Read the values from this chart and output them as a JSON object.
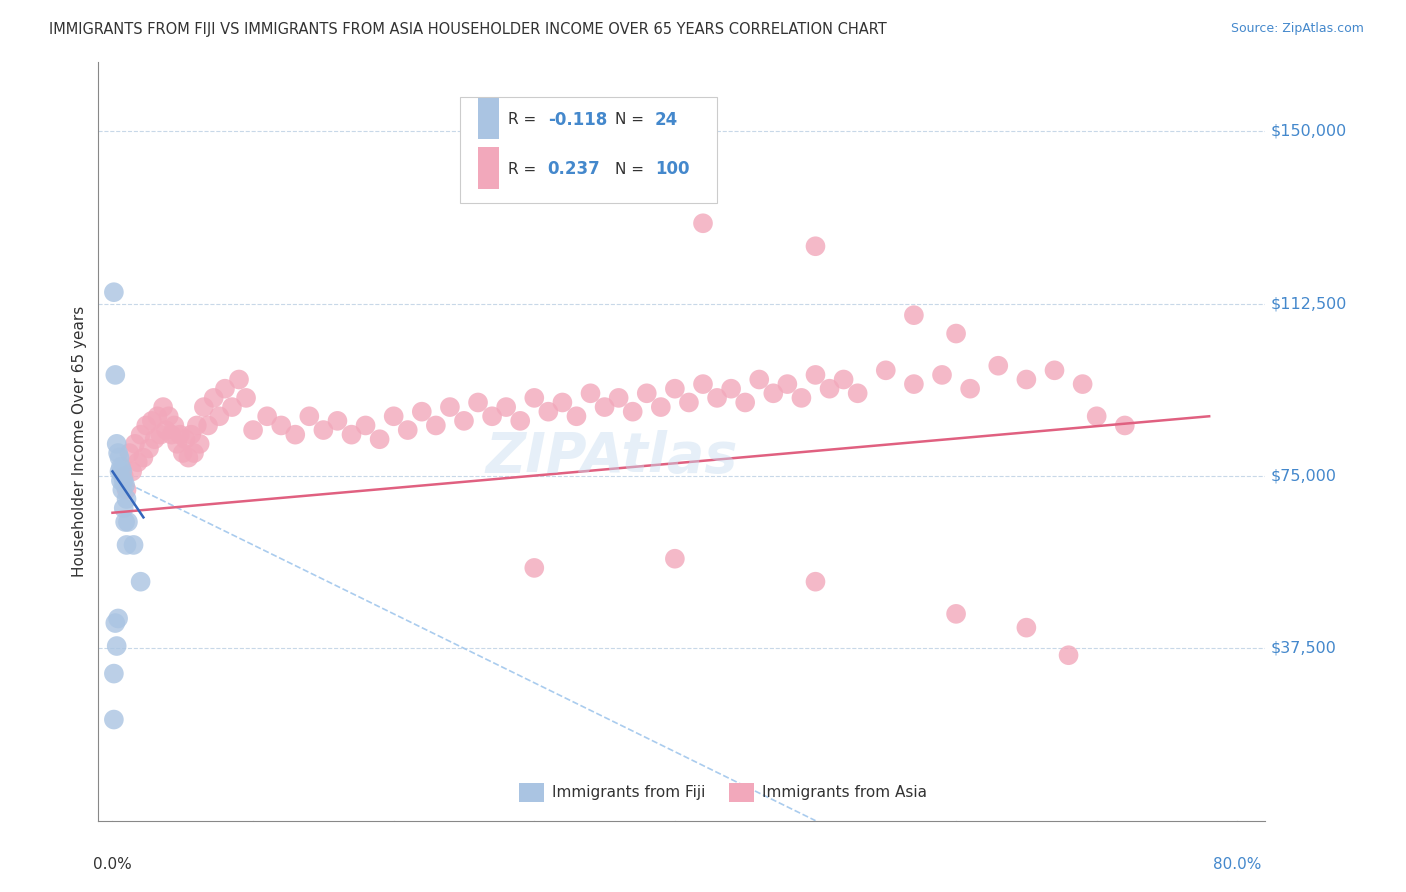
{
  "title": "IMMIGRANTS FROM FIJI VS IMMIGRANTS FROM ASIA HOUSEHOLDER INCOME OVER 65 YEARS CORRELATION CHART",
  "source": "Source: ZipAtlas.com",
  "ylabel": "Householder Income Over 65 years",
  "ytick_labels": [
    "$150,000",
    "$112,500",
    "$75,000",
    "$37,500"
  ],
  "ytick_values": [
    150000,
    112500,
    75000,
    37500
  ],
  "ymax": 165000,
  "ymin": 0,
  "xmax": 0.82,
  "xmin": -0.01,
  "fiji_R": -0.118,
  "fiji_N": 24,
  "asia_R": 0.237,
  "asia_N": 100,
  "fiji_color": "#aac4e2",
  "asia_color": "#f2a8bb",
  "fiji_trend_color": "#3366bb",
  "asia_trend_color": "#e06080",
  "fiji_scatter": [
    [
      0.001,
      115000
    ],
    [
      0.002,
      97000
    ],
    [
      0.003,
      82000
    ],
    [
      0.004,
      80000
    ],
    [
      0.005,
      79000
    ],
    [
      0.005,
      76000
    ],
    [
      0.006,
      77000
    ],
    [
      0.006,
      74000
    ],
    [
      0.007,
      76000
    ],
    [
      0.007,
      72000
    ],
    [
      0.008,
      74000
    ],
    [
      0.008,
      68000
    ],
    [
      0.009,
      73000
    ],
    [
      0.009,
      65000
    ],
    [
      0.01,
      70000
    ],
    [
      0.01,
      60000
    ],
    [
      0.011,
      65000
    ],
    [
      0.015,
      60000
    ],
    [
      0.02,
      52000
    ],
    [
      0.002,
      43000
    ],
    [
      0.003,
      38000
    ],
    [
      0.004,
      44000
    ],
    [
      0.001,
      32000
    ],
    [
      0.001,
      22000
    ]
  ],
  "asia_scatter": [
    [
      0.008,
      75000
    ],
    [
      0.01,
      72000
    ],
    [
      0.012,
      80000
    ],
    [
      0.014,
      76000
    ],
    [
      0.016,
      82000
    ],
    [
      0.018,
      78000
    ],
    [
      0.02,
      84000
    ],
    [
      0.022,
      79000
    ],
    [
      0.024,
      86000
    ],
    [
      0.026,
      81000
    ],
    [
      0.028,
      87000
    ],
    [
      0.03,
      83000
    ],
    [
      0.032,
      88000
    ],
    [
      0.034,
      84000
    ],
    [
      0.036,
      90000
    ],
    [
      0.038,
      85000
    ],
    [
      0.04,
      88000
    ],
    [
      0.042,
      84000
    ],
    [
      0.044,
      86000
    ],
    [
      0.046,
      82000
    ],
    [
      0.048,
      84000
    ],
    [
      0.05,
      80000
    ],
    [
      0.052,
      83000
    ],
    [
      0.054,
      79000
    ],
    [
      0.056,
      84000
    ],
    [
      0.058,
      80000
    ],
    [
      0.06,
      86000
    ],
    [
      0.062,
      82000
    ],
    [
      0.065,
      90000
    ],
    [
      0.068,
      86000
    ],
    [
      0.072,
      92000
    ],
    [
      0.076,
      88000
    ],
    [
      0.08,
      94000
    ],
    [
      0.085,
      90000
    ],
    [
      0.09,
      96000
    ],
    [
      0.095,
      92000
    ],
    [
      0.1,
      85000
    ],
    [
      0.11,
      88000
    ],
    [
      0.12,
      86000
    ],
    [
      0.13,
      84000
    ],
    [
      0.14,
      88000
    ],
    [
      0.15,
      85000
    ],
    [
      0.16,
      87000
    ],
    [
      0.17,
      84000
    ],
    [
      0.18,
      86000
    ],
    [
      0.19,
      83000
    ],
    [
      0.2,
      88000
    ],
    [
      0.21,
      85000
    ],
    [
      0.22,
      89000
    ],
    [
      0.23,
      86000
    ],
    [
      0.24,
      90000
    ],
    [
      0.25,
      87000
    ],
    [
      0.26,
      91000
    ],
    [
      0.27,
      88000
    ],
    [
      0.28,
      90000
    ],
    [
      0.29,
      87000
    ],
    [
      0.3,
      92000
    ],
    [
      0.31,
      89000
    ],
    [
      0.32,
      91000
    ],
    [
      0.33,
      88000
    ],
    [
      0.34,
      93000
    ],
    [
      0.35,
      90000
    ],
    [
      0.36,
      92000
    ],
    [
      0.37,
      89000
    ],
    [
      0.38,
      93000
    ],
    [
      0.39,
      90000
    ],
    [
      0.4,
      94000
    ],
    [
      0.41,
      91000
    ],
    [
      0.42,
      95000
    ],
    [
      0.43,
      92000
    ],
    [
      0.44,
      94000
    ],
    [
      0.45,
      91000
    ],
    [
      0.46,
      96000
    ],
    [
      0.47,
      93000
    ],
    [
      0.48,
      95000
    ],
    [
      0.49,
      92000
    ],
    [
      0.5,
      97000
    ],
    [
      0.51,
      94000
    ],
    [
      0.52,
      96000
    ],
    [
      0.53,
      93000
    ],
    [
      0.55,
      98000
    ],
    [
      0.57,
      95000
    ],
    [
      0.59,
      97000
    ],
    [
      0.61,
      94000
    ],
    [
      0.63,
      99000
    ],
    [
      0.65,
      96000
    ],
    [
      0.67,
      98000
    ],
    [
      0.69,
      95000
    ],
    [
      0.42,
      130000
    ],
    [
      0.5,
      125000
    ],
    [
      0.57,
      110000
    ],
    [
      0.6,
      106000
    ],
    [
      0.3,
      55000
    ],
    [
      0.4,
      57000
    ],
    [
      0.5,
      52000
    ],
    [
      0.6,
      45000
    ],
    [
      0.65,
      42000
    ],
    [
      0.68,
      36000
    ],
    [
      0.7,
      88000
    ],
    [
      0.72,
      86000
    ]
  ],
  "ref_line_color": "#aaccee",
  "background_color": "#ffffff",
  "grid_color": "#c8d8e8",
  "watermark_text": "ZIPAtlas",
  "legend_fiji_color": "#aac4e2",
  "legend_asia_color": "#f2a8bb",
  "xtick_positions": [
    0.0,
    0.1,
    0.2,
    0.3,
    0.4,
    0.5,
    0.6,
    0.7,
    0.8
  ]
}
